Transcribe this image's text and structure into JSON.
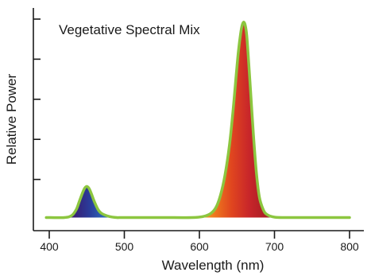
{
  "chart_data": {
    "type": "line",
    "title": "Vegetative Spectral Mix",
    "xlabel": "Wavelength (nm)",
    "ylabel": "Relative Power",
    "xlim": [
      400,
      800
    ],
    "ylim": [
      0,
      1
    ],
    "x_ticks": [
      400,
      500,
      600,
      700,
      800
    ],
    "x_tick_labels": [
      "400",
      "500",
      "600",
      "700",
      "800"
    ],
    "y_ticks": [
      0.2,
      0.4,
      0.6,
      0.8,
      1.0
    ],
    "y_tick_labels": [
      "",
      "",
      "",
      "",
      ""
    ],
    "grid": false,
    "series": [
      {
        "color": "#8cc63f",
        "x": [
          396,
          420,
          430,
          436,
          440,
          444,
          447,
          450,
          453,
          456,
          460,
          465,
          470,
          480,
          490,
          500,
          550,
          590,
          605,
          615,
          622,
          628,
          634,
          640,
          645,
          649,
          652,
          655,
          657,
          659,
          661,
          663,
          665,
          668,
          672,
          676,
          680,
          685,
          690,
          700,
          720,
          800
        ],
        "y": [
          0.01,
          0.01,
          0.02,
          0.05,
          0.09,
          0.13,
          0.155,
          0.165,
          0.155,
          0.13,
          0.09,
          0.05,
          0.03,
          0.015,
          0.01,
          0.01,
          0.01,
          0.01,
          0.015,
          0.03,
          0.06,
          0.12,
          0.22,
          0.37,
          0.55,
          0.72,
          0.84,
          0.93,
          0.97,
          0.985,
          0.97,
          0.92,
          0.82,
          0.65,
          0.42,
          0.23,
          0.11,
          0.05,
          0.025,
          0.012,
          0.01,
          0.01
        ]
      }
    ],
    "fill_gradient": [
      "#3a1a6e",
      "#2a3c9a",
      "#2f6fbf",
      "#2fa7c9",
      "#3fbf7a",
      "#9ad13f",
      "#f2e52a",
      "#f5b623",
      "#ef7a1e",
      "#e0461f",
      "#c8262a",
      "#a81d24"
    ]
  }
}
